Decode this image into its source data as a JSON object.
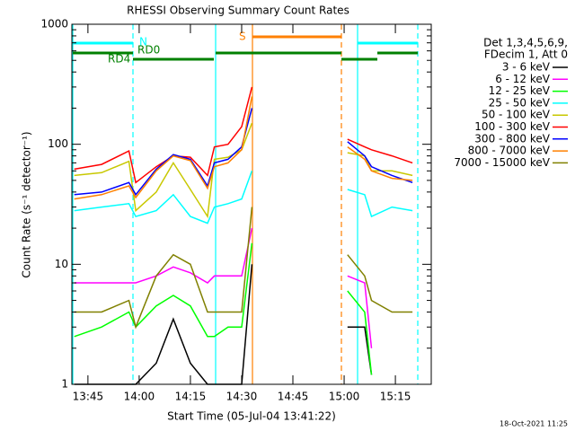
{
  "chart_data": {
    "type": "line",
    "title": "RHESSI Observing Summary Count Rates",
    "x_label": "Start Time (05-Jul-04 13:41:22)",
    "y_label": "Count Rate (s⁻¹ detector⁻¹)",
    "legend_header": [
      "Det 1,3,4,5,6,9,",
      "FDecim 1, Att 0"
    ],
    "annotations": [
      "N",
      "RD0",
      "RD4",
      "S"
    ],
    "footer": "18-Oct-2021 11:25",
    "log_y": true,
    "xlim": [
      820.3,
      925.5
    ],
    "xticks": [
      {
        "value": 825,
        "label": "13:45"
      },
      {
        "value": 840,
        "label": "14:00"
      },
      {
        "value": 855,
        "label": "14:15"
      },
      {
        "value": 870,
        "label": "14:30"
      },
      {
        "value": 885,
        "label": "14:45"
      },
      {
        "value": 900,
        "label": "15:00"
      },
      {
        "value": 915,
        "label": "15:15"
      }
    ],
    "ylim": [
      1,
      1000
    ],
    "yticks": [
      1,
      10,
      100,
      1000
    ],
    "x": [
      821,
      829,
      837,
      839,
      845,
      850,
      855,
      860,
      862,
      866,
      870,
      873,
      886,
      901,
      906,
      908,
      914,
      920
    ],
    "series": [
      {
        "name": "3 - 6 keV",
        "color": "#000000",
        "values": [
          1,
          1,
          1,
          1,
          1.5,
          3.5,
          1.5,
          1,
          1,
          1,
          1,
          10,
          null,
          3,
          3,
          1.2,
          null,
          null
        ]
      },
      {
        "name": "6 - 12 keV",
        "color": "#ff00ff",
        "values": [
          7,
          7,
          7,
          7,
          8,
          9.5,
          8.5,
          7,
          8,
          8,
          8,
          20,
          null,
          8,
          7,
          2,
          null,
          null
        ]
      },
      {
        "name": "12 - 25 keV",
        "color": "#00ff00",
        "values": [
          2.5,
          3,
          4,
          3,
          4.5,
          5.5,
          4.5,
          2.5,
          2.5,
          3,
          3,
          15,
          null,
          6,
          4,
          1.2,
          null,
          null
        ]
      },
      {
        "name": "25 - 50 keV",
        "color": "#00ffff",
        "values": [
          28,
          30,
          32,
          25,
          28,
          38,
          25,
          22,
          30,
          32,
          35,
          60,
          null,
          42,
          38,
          25,
          30,
          28
        ]
      },
      {
        "name": "50 - 100 keV",
        "color": "#c8c800",
        "values": [
          55,
          58,
          72,
          28,
          40,
          70,
          42,
          25,
          75,
          78,
          90,
          150,
          null,
          85,
          80,
          60,
          60,
          55
        ]
      },
      {
        "name": "100 - 300 keV",
        "color": "#ff0000",
        "values": [
          62,
          68,
          88,
          48,
          65,
          80,
          78,
          55,
          95,
          100,
          140,
          300,
          null,
          110,
          95,
          90,
          80,
          70
        ]
      },
      {
        "name": "300 - 800 keV",
        "color": "#0000ff",
        "values": [
          38,
          40,
          48,
          38,
          62,
          82,
          75,
          45,
          70,
          75,
          95,
          200,
          null,
          105,
          80,
          65,
          55,
          48
        ]
      },
      {
        "name": "800 - 7000 keV",
        "color": "#ff8000",
        "values": [
          35,
          38,
          45,
          36,
          60,
          80,
          73,
          43,
          65,
          70,
          90,
          250,
          null,
          95,
          75,
          60,
          52,
          50
        ]
      },
      {
        "name": "7000 - 15000 keV",
        "color": "#808000",
        "values": [
          4,
          4,
          5,
          3,
          8,
          12,
          10,
          4,
          4,
          4,
          4,
          30,
          null,
          12,
          8,
          5,
          4,
          4
        ]
      }
    ]
  }
}
